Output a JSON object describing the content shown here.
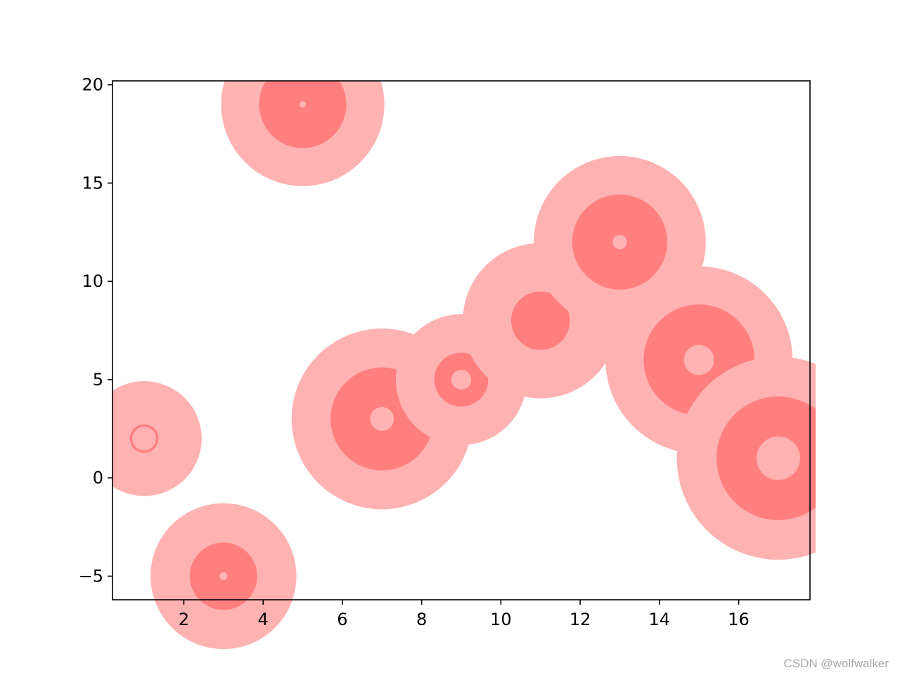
{
  "chart_data": {
    "type": "scatter",
    "title": "",
    "xlabel": "",
    "ylabel": "",
    "xlim": [
      0.2,
      17.8
    ],
    "ylim": [
      -6.2,
      20.2
    ],
    "xticks": [
      2,
      4,
      6,
      8,
      10,
      12,
      14,
      16
    ],
    "yticks": [
      -5,
      0,
      5,
      10,
      15,
      20
    ],
    "xtick_labels": [
      "2",
      "4",
      "6",
      "8",
      "10",
      "12",
      "14",
      "16"
    ],
    "ytick_labels": [
      "−5",
      "0",
      "5",
      "10",
      "15",
      "20"
    ],
    "grid": false,
    "legend": "none",
    "colors": {
      "outer": "#ffb2b2",
      "middle": "#ff7f7f",
      "inner": "#ffb2b2"
    },
    "points": [
      {
        "x": 1,
        "y": 2,
        "outer": 1.45,
        "middle": 0.36,
        "inner": 0.3
      },
      {
        "x": 3,
        "y": -5,
        "outer": 1.84,
        "middle": 0.85,
        "inner": 0.1
      },
      {
        "x": 5,
        "y": 19,
        "outer": 2.06,
        "middle": 1.1,
        "inner": 0.08
      },
      {
        "x": 7,
        "y": 3,
        "outer": 2.28,
        "middle": 1.3,
        "inner": 0.3
      },
      {
        "x": 9,
        "y": 5,
        "outer": 1.65,
        "middle": 0.68,
        "inner": 0.25
      },
      {
        "x": 11,
        "y": 8,
        "outer": 1.96,
        "middle": 0.74,
        "inner": 0.0
      },
      {
        "x": 13,
        "y": 12,
        "outer": 2.17,
        "middle": 1.2,
        "inner": 0.18
      },
      {
        "x": 15,
        "y": 6,
        "outer": 2.36,
        "middle": 1.4,
        "inner": 0.38
      },
      {
        "x": 17,
        "y": 1,
        "outer": 2.56,
        "middle": 1.56,
        "inner": 0.55
      }
    ]
  },
  "watermark": "CSDN @wolfwalker"
}
